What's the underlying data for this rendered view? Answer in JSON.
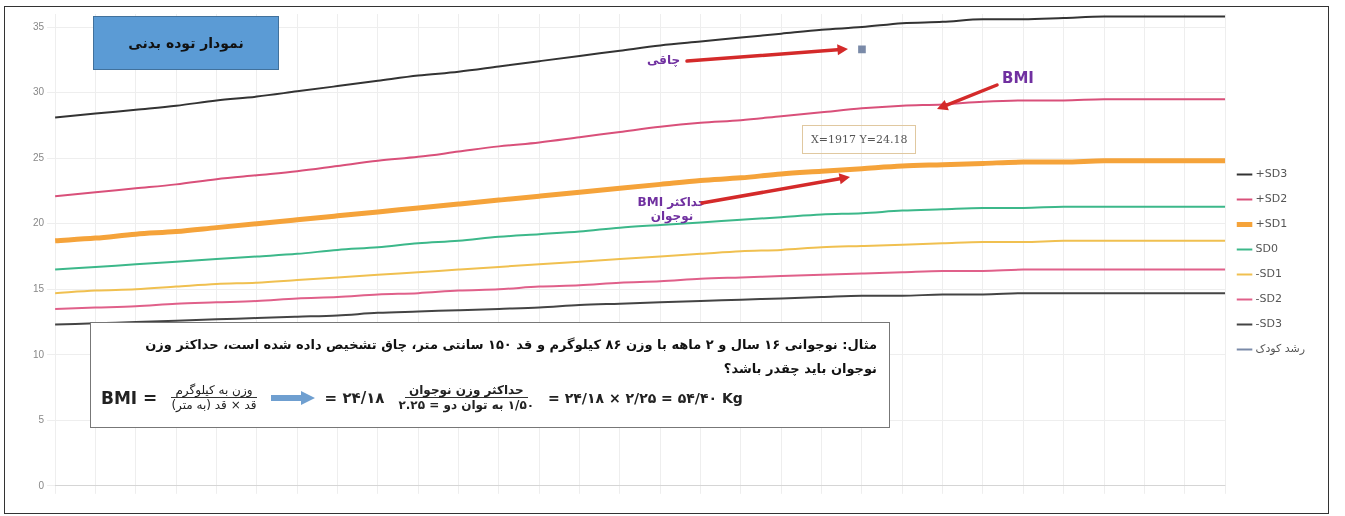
{
  "chart_data": {
    "type": "line",
    "title": "نمودار توده بدنی",
    "categories": [
      null,
      null,
      null,
      null,
      null,
      null,
      null,
      null,
      null,
      null,
      null,
      null,
      null,
      null,
      null,
      null,
      null,
      null,
      null,
      null,
      null,
      null,
      null,
      null,
      null,
      null,
      null,
      null,
      null,
      null
    ],
    "series": [
      {
        "name": "+SD3",
        "color": "#333333",
        "values": [
          28.1,
          28.4,
          28.7,
          29.0,
          29.4,
          29.7,
          30.1,
          30.5,
          30.9,
          31.3,
          31.6,
          32.0,
          32.4,
          32.8,
          33.2,
          33.6,
          33.9,
          34.2,
          34.5,
          34.8,
          35.0,
          35.3,
          35.4,
          35.6,
          35.6,
          35.7,
          35.8,
          35.8,
          35.8,
          35.8
        ]
      },
      {
        "name": "+SD2",
        "color": "#d9507a",
        "values": [
          22.1,
          22.4,
          22.7,
          23.0,
          23.4,
          23.7,
          24.0,
          24.4,
          24.8,
          25.1,
          25.5,
          25.9,
          26.2,
          26.6,
          27.0,
          27.4,
          27.7,
          27.9,
          28.2,
          28.5,
          28.8,
          29.0,
          29.1,
          29.3,
          29.4,
          29.4,
          29.5,
          29.5,
          29.5,
          29.5
        ]
      },
      {
        "name": "+SD1",
        "color": "#f5a33a",
        "values": [
          18.7,
          18.9,
          19.2,
          19.4,
          19.7,
          20.0,
          20.3,
          20.6,
          20.9,
          21.2,
          21.5,
          21.8,
          22.1,
          22.4,
          22.7,
          23.0,
          23.3,
          23.5,
          23.8,
          24.0,
          24.2,
          24.4,
          24.5,
          24.6,
          24.7,
          24.7,
          24.8,
          24.8,
          24.8,
          24.8
        ]
      },
      {
        "name": "SD0",
        "color": "#3cb88a",
        "values": [
          16.5,
          16.7,
          16.9,
          17.1,
          17.3,
          17.5,
          17.7,
          18.0,
          18.2,
          18.5,
          18.7,
          19.0,
          19.2,
          19.4,
          19.7,
          19.9,
          20.1,
          20.3,
          20.5,
          20.7,
          20.8,
          21.0,
          21.1,
          21.2,
          21.2,
          21.3,
          21.3,
          21.3,
          21.3,
          21.3
        ]
      },
      {
        "name": "-SD1",
        "color": "#f0c050",
        "values": [
          14.7,
          14.9,
          15.0,
          15.2,
          15.4,
          15.5,
          15.7,
          15.9,
          16.1,
          16.3,
          16.5,
          16.7,
          16.9,
          17.1,
          17.3,
          17.5,
          17.7,
          17.9,
          18.0,
          18.2,
          18.3,
          18.4,
          18.5,
          18.6,
          18.6,
          18.7,
          18.7,
          18.7,
          18.7,
          18.7
        ]
      },
      {
        "name": "-SD2",
        "color": "#e0608a",
        "values": [
          13.5,
          13.6,
          13.7,
          13.9,
          14.0,
          14.1,
          14.3,
          14.4,
          14.6,
          14.7,
          14.9,
          15.0,
          15.2,
          15.3,
          15.5,
          15.6,
          15.8,
          15.9,
          16.0,
          16.1,
          16.2,
          16.3,
          16.4,
          16.4,
          16.5,
          16.5,
          16.5,
          16.5,
          16.5,
          16.5
        ]
      },
      {
        "name": "-SD3",
        "color": "#444444",
        "values": [
          12.3,
          12.4,
          12.5,
          12.6,
          12.7,
          12.8,
          12.9,
          13.0,
          13.2,
          13.3,
          13.4,
          13.5,
          13.6,
          13.8,
          13.9,
          14.0,
          14.1,
          14.2,
          14.3,
          14.4,
          14.5,
          14.5,
          14.6,
          14.6,
          14.7,
          14.7,
          14.7,
          14.7,
          14.7,
          14.7
        ]
      },
      {
        "name": "رشد کودک",
        "color": "#7a8aa8",
        "marker": "square",
        "values": [
          null,
          null,
          null,
          null,
          null,
          null,
          null,
          null,
          null,
          null,
          null,
          null,
          null,
          null,
          null,
          null,
          null,
          null,
          null,
          null,
          33.3,
          null,
          null,
          null,
          null,
          null,
          null,
          null,
          null,
          null
        ]
      }
    ],
    "ylim": [
      0,
      36
    ],
    "yticks": [
      0,
      5,
      10,
      15,
      20,
      25,
      30,
      35
    ],
    "grid": true,
    "legend": "right",
    "marker": "none",
    "line_style": "solid",
    "annotations": [
      "مثال: نوجوانی ۱۶ سال و ۲ ماهه با وزن ۸۶ کیلوگرم و قد ۱۵۰ سانتی متر، چاق تشخیص داده شده است، حداکثر وزن نوجوان باید چقدر باشد؟",
      "BMI =",
      "وزن به کیلوگرم",
      "قد × قد (به متر)",
      "۲۴/۱۸ =",
      "حداکثر وزن نوجوان",
      "۱/۵۰ به توان دو = ۲.۲۵",
      "= ۲۴/۱۸ × ۲/۲۵ = ۵۴/۴۰ Kg",
      {
        "text": "چاقی",
        "y": 33.3
      },
      "BMI",
      {
        "text": "X=1917 Y=24.18",
        "y": 24.18
      },
      "حداکثر BMI نوجوان"
    ]
  }
}
